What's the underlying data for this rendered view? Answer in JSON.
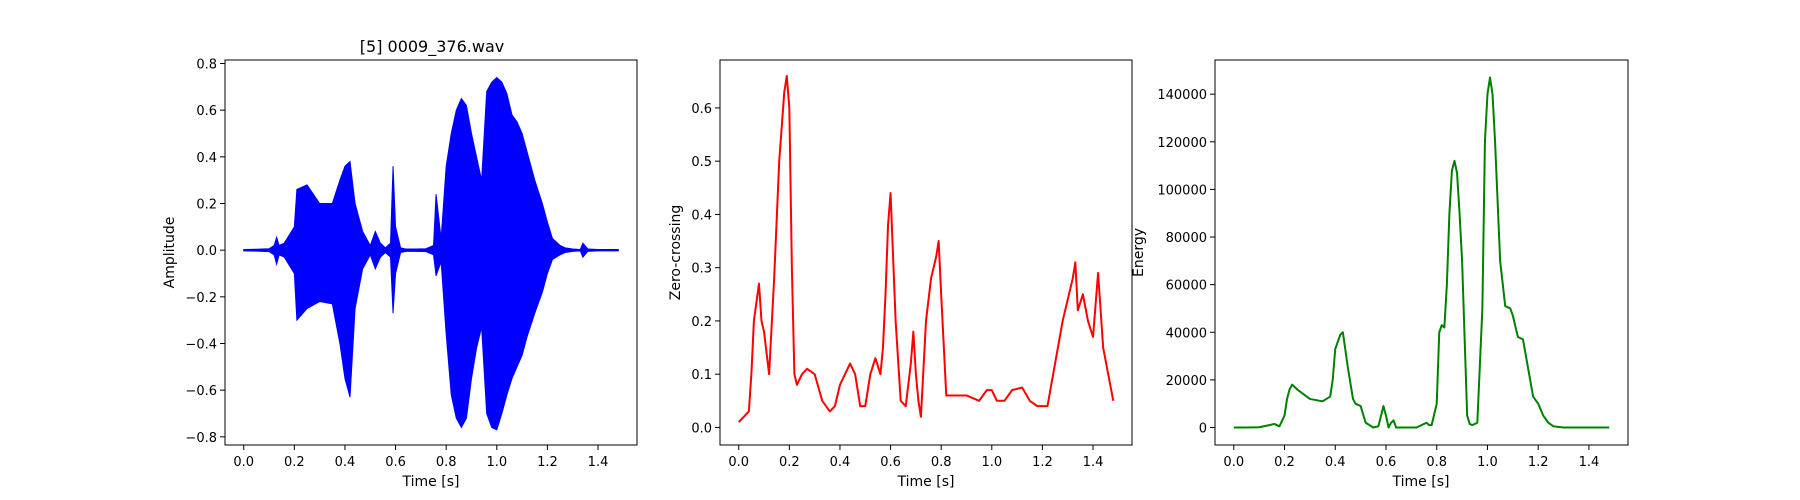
{
  "chart_data": [
    {
      "type": "line",
      "title": "[5] 0009_376.wav",
      "xlabel": "Time [s]",
      "ylabel": "Amplitude",
      "xlim": [
        -0.074,
        1.554
      ],
      "ylim": [
        -0.835,
        0.815
      ],
      "xticks": [
        "0.0",
        "0.2",
        "0.4",
        "0.6",
        "0.8",
        "1.0",
        "1.2",
        "1.4"
      ],
      "yticks": [
        "−0.8",
        "−0.6",
        "−0.4",
        "−0.2",
        "0.0",
        "0.2",
        "0.4",
        "0.6",
        "0.8"
      ],
      "color": "#0000ff",
      "style": "envelope",
      "x": [
        0.0,
        0.05,
        0.1,
        0.12,
        0.13,
        0.14,
        0.16,
        0.2,
        0.21,
        0.25,
        0.3,
        0.35,
        0.38,
        0.4,
        0.42,
        0.44,
        0.47,
        0.5,
        0.52,
        0.54,
        0.56,
        0.58,
        0.59,
        0.6,
        0.62,
        0.64,
        0.68,
        0.72,
        0.75,
        0.76,
        0.78,
        0.8,
        0.82,
        0.84,
        0.86,
        0.88,
        0.9,
        0.92,
        0.94,
        0.96,
        0.98,
        1.0,
        1.02,
        1.04,
        1.06,
        1.08,
        1.1,
        1.12,
        1.15,
        1.18,
        1.2,
        1.22,
        1.25,
        1.27,
        1.3,
        1.33,
        1.34,
        1.36,
        1.4,
        1.48
      ],
      "upper": [
        0.003,
        0.004,
        0.006,
        0.02,
        0.055,
        0.02,
        0.03,
        0.1,
        0.26,
        0.28,
        0.2,
        0.2,
        0.3,
        0.36,
        0.38,
        0.2,
        0.08,
        0.02,
        0.08,
        0.03,
        0.01,
        0.03,
        0.36,
        0.1,
        0.01,
        0.005,
        0.005,
        0.006,
        0.02,
        0.24,
        0.05,
        0.36,
        0.5,
        0.6,
        0.65,
        0.62,
        0.5,
        0.4,
        0.3,
        0.68,
        0.72,
        0.74,
        0.72,
        0.67,
        0.58,
        0.55,
        0.5,
        0.42,
        0.3,
        0.2,
        0.12,
        0.05,
        0.02,
        0.01,
        0.005,
        0.003,
        0.03,
        0.005,
        0.003,
        0.003
      ],
      "lower": [
        -0.003,
        -0.004,
        -0.006,
        -0.02,
        -0.06,
        -0.02,
        -0.03,
        -0.1,
        -0.3,
        -0.25,
        -0.22,
        -0.23,
        -0.4,
        -0.55,
        -0.63,
        -0.25,
        -0.08,
        -0.02,
        -0.08,
        -0.03,
        -0.01,
        -0.03,
        -0.27,
        -0.1,
        -0.01,
        -0.005,
        -0.005,
        -0.006,
        -0.02,
        -0.11,
        -0.05,
        -0.36,
        -0.62,
        -0.72,
        -0.76,
        -0.72,
        -0.55,
        -0.42,
        -0.33,
        -0.7,
        -0.76,
        -0.77,
        -0.7,
        -0.62,
        -0.55,
        -0.5,
        -0.45,
        -0.37,
        -0.27,
        -0.18,
        -0.1,
        -0.04,
        -0.02,
        -0.01,
        -0.005,
        -0.003,
        -0.03,
        -0.005,
        -0.003,
        -0.003
      ]
    },
    {
      "type": "line",
      "title": "",
      "xlabel": "Time [s]",
      "ylabel": "Zero-crossing",
      "xlim": [
        -0.074,
        1.554
      ],
      "ylim": [
        -0.033,
        0.69
      ],
      "xticks": [
        "0.0",
        "0.2",
        "0.4",
        "0.6",
        "0.8",
        "1.0",
        "1.2",
        "1.4"
      ],
      "yticks": [
        "0.0",
        "0.1",
        "0.2",
        "0.3",
        "0.4",
        "0.5",
        "0.6"
      ],
      "color": "#ff0000",
      "style": "line",
      "x": [
        0.0,
        0.02,
        0.04,
        0.05,
        0.06,
        0.08,
        0.09,
        0.1,
        0.12,
        0.14,
        0.16,
        0.18,
        0.19,
        0.2,
        0.21,
        0.22,
        0.23,
        0.25,
        0.27,
        0.3,
        0.33,
        0.36,
        0.38,
        0.4,
        0.42,
        0.44,
        0.46,
        0.48,
        0.5,
        0.52,
        0.54,
        0.56,
        0.57,
        0.58,
        0.59,
        0.6,
        0.62,
        0.64,
        0.66,
        0.68,
        0.69,
        0.7,
        0.71,
        0.72,
        0.74,
        0.76,
        0.78,
        0.79,
        0.8,
        0.82,
        0.85,
        0.9,
        0.95,
        0.98,
        1.0,
        1.02,
        1.05,
        1.08,
        1.12,
        1.15,
        1.18,
        1.2,
        1.22,
        1.25,
        1.28,
        1.3,
        1.32,
        1.33,
        1.34,
        1.36,
        1.38,
        1.4,
        1.42,
        1.44,
        1.46,
        1.48
      ],
      "y": [
        0.01,
        0.02,
        0.03,
        0.1,
        0.2,
        0.27,
        0.2,
        0.18,
        0.1,
        0.28,
        0.5,
        0.63,
        0.66,
        0.6,
        0.3,
        0.1,
        0.08,
        0.1,
        0.11,
        0.1,
        0.05,
        0.03,
        0.04,
        0.08,
        0.1,
        0.12,
        0.1,
        0.04,
        0.04,
        0.1,
        0.13,
        0.1,
        0.15,
        0.25,
        0.38,
        0.44,
        0.2,
        0.05,
        0.04,
        0.12,
        0.18,
        0.1,
        0.05,
        0.02,
        0.2,
        0.28,
        0.32,
        0.35,
        0.25,
        0.06,
        0.06,
        0.06,
        0.05,
        0.07,
        0.07,
        0.05,
        0.05,
        0.07,
        0.075,
        0.05,
        0.04,
        0.04,
        0.04,
        0.12,
        0.2,
        0.24,
        0.28,
        0.31,
        0.22,
        0.25,
        0.2,
        0.17,
        0.29,
        0.15,
        0.1,
        0.05
      ]
    },
    {
      "type": "line",
      "title": "",
      "xlabel": "Time [s]",
      "ylabel": "Energy",
      "xlim": [
        -0.074,
        1.554
      ],
      "ylim": [
        -7350,
        154350
      ],
      "xticks": [
        "0.0",
        "0.2",
        "0.4",
        "0.6",
        "0.8",
        "1.0",
        "1.2",
        "1.4"
      ],
      "yticks": [
        "0",
        "20000",
        "40000",
        "60000",
        "80000",
        "100000",
        "120000",
        "140000"
      ],
      "color": "#008000",
      "style": "line",
      "x": [
        0.0,
        0.05,
        0.1,
        0.14,
        0.16,
        0.18,
        0.2,
        0.21,
        0.22,
        0.23,
        0.25,
        0.3,
        0.35,
        0.38,
        0.39,
        0.4,
        0.42,
        0.43,
        0.45,
        0.47,
        0.48,
        0.5,
        0.52,
        0.55,
        0.57,
        0.59,
        0.6,
        0.61,
        0.62,
        0.63,
        0.64,
        0.65,
        0.68,
        0.72,
        0.76,
        0.77,
        0.78,
        0.8,
        0.81,
        0.82,
        0.83,
        0.84,
        0.85,
        0.86,
        0.87,
        0.88,
        0.89,
        0.9,
        0.92,
        0.93,
        0.94,
        0.96,
        0.98,
        0.99,
        1.0,
        1.01,
        1.02,
        1.03,
        1.04,
        1.05,
        1.07,
        1.09,
        1.1,
        1.12,
        1.14,
        1.16,
        1.18,
        1.2,
        1.22,
        1.24,
        1.26,
        1.3,
        1.4,
        1.48
      ],
      "y": [
        0,
        0,
        100,
        1000,
        1500,
        500,
        5000,
        12000,
        16000,
        18000,
        16000,
        12000,
        11000,
        13000,
        20000,
        33000,
        39000,
        40000,
        25000,
        12000,
        10000,
        9000,
        2000,
        0,
        500,
        9000,
        5000,
        0,
        2000,
        3000,
        0,
        0,
        0,
        0,
        2000,
        1000,
        1000,
        10000,
        40000,
        43000,
        42000,
        60000,
        90000,
        108000,
        112000,
        107000,
        90000,
        70000,
        5000,
        1500,
        1000,
        2000,
        50000,
        120000,
        140000,
        147000,
        140000,
        120000,
        95000,
        70000,
        51000,
        50000,
        47000,
        38000,
        37000,
        25000,
        13000,
        10000,
        5000,
        2000,
        500,
        0,
        0,
        0
      ]
    }
  ]
}
